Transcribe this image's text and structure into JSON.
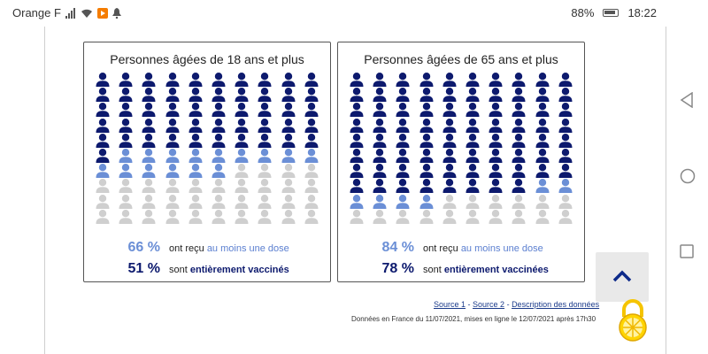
{
  "status_bar": {
    "carrier": "Orange F",
    "battery": "88%",
    "time": "18:22"
  },
  "cards": [
    {
      "title": "Personnes âgées de 18 ans et plus",
      "dark_count": 51,
      "light_count": 15,
      "total": 100,
      "stat1": {
        "pct": "66 %",
        "text": "ont reçu ",
        "highlight": "au moins une dose"
      },
      "stat2": {
        "pct": "51 %",
        "text": "sont ",
        "highlight": "entièrement vaccinés"
      }
    },
    {
      "title": "Personnes âgées de 65 ans et plus",
      "dark_count": 78,
      "light_count": 6,
      "total": 100,
      "stat1": {
        "pct": "84 %",
        "text": "ont reçu ",
        "highlight": "au moins une dose"
      },
      "stat2": {
        "pct": "78 %",
        "text": "sont ",
        "highlight": "entièrement vaccinées"
      }
    }
  ],
  "sources": {
    "source1": "Source 1",
    "sep1": " - ",
    "source2": "Source 2",
    "sep2": " - ",
    "description": "Description des données"
  },
  "footnote": "Données en France du 11/07/2021, mises en ligne le 12/07/2021 après 17h30",
  "colors": {
    "dark": "#0d1a6e",
    "light": "#6b8fd6",
    "empty": "#cfcfcf"
  }
}
